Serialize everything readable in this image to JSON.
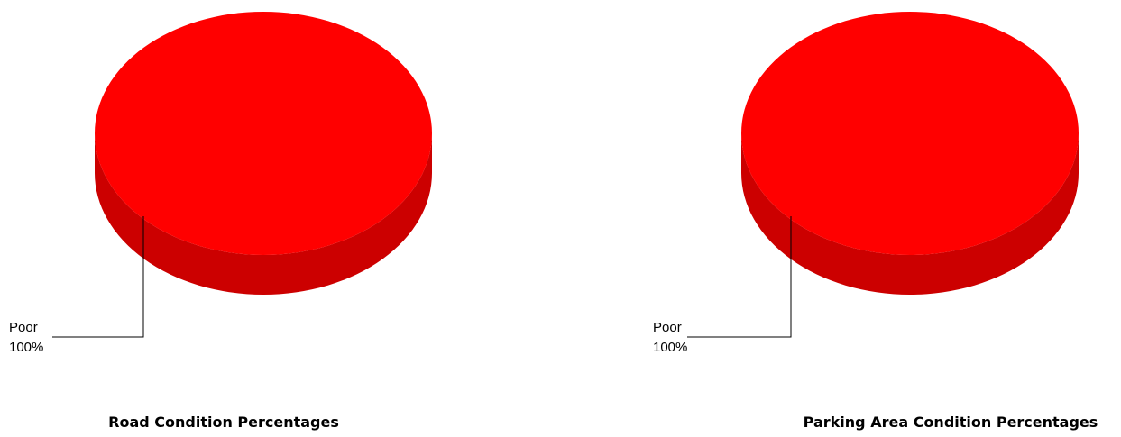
{
  "chart_data": [
    {
      "type": "pie",
      "style": "3d",
      "title": "Road Condition Percentages",
      "categories": [
        "Poor"
      ],
      "values": [
        100
      ],
      "data_labels": [
        {
          "category": "Poor",
          "percent": "100%"
        }
      ],
      "colors": {
        "top": "#ff0000",
        "side": "#cc0000"
      },
      "legend": "none"
    },
    {
      "type": "pie",
      "style": "3d",
      "title": "Parking Area Condition Percentages",
      "categories": [
        "Poor"
      ],
      "values": [
        100
      ],
      "data_labels": [
        {
          "category": "Poor",
          "percent": "100%"
        }
      ],
      "colors": {
        "top": "#ff0000",
        "side": "#cc0000"
      },
      "legend": "none"
    }
  ]
}
